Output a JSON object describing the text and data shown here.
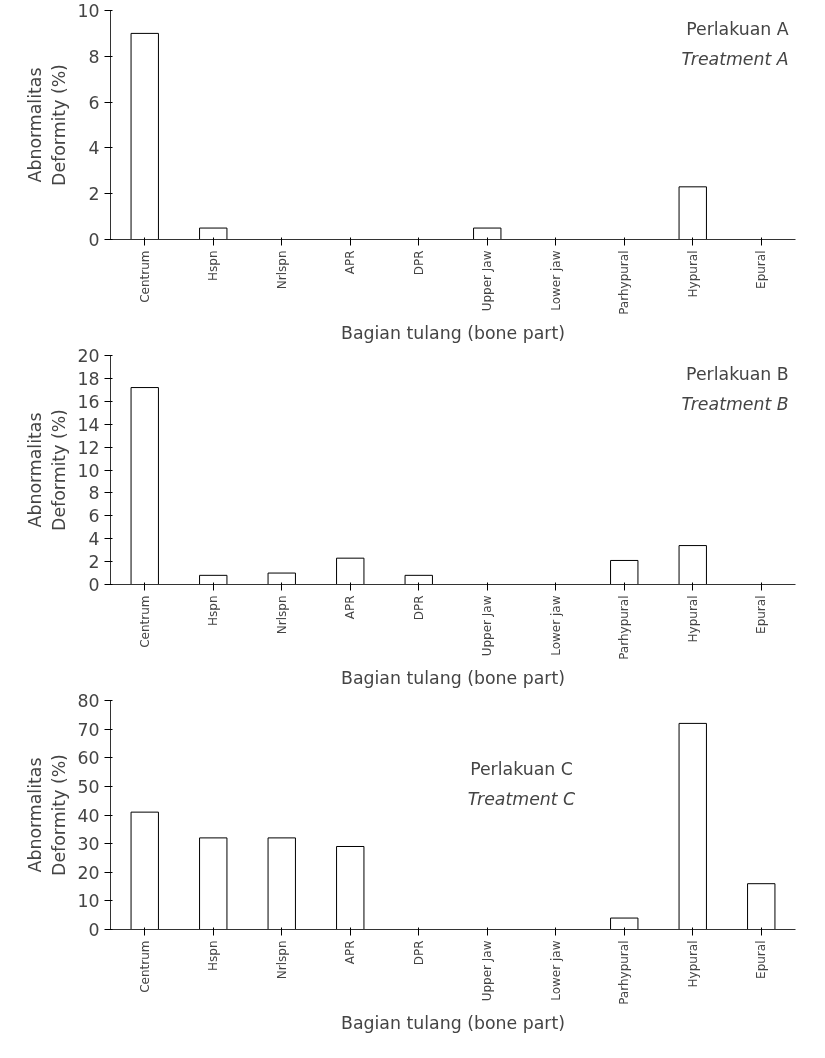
{
  "chart_data": [
    {
      "type": "bar",
      "title": "Perlakuan A",
      "subtitle": "Treatment A",
      "xlabel": "Bagian tulang (bone part)",
      "ylabel": "Abnormalitas\nDeformity (%)",
      "categories": [
        "Centrum",
        "Hspn",
        "Nrlspn",
        "APR",
        "DPR",
        "Upper Jaw",
        "Lower jaw",
        "Parhypural",
        "Hypural",
        "Epural"
      ],
      "values": [
        9,
        0.5,
        0,
        0,
        0,
        0.5,
        0,
        0,
        2.3,
        0
      ],
      "color": "#000000",
      "ylim": [
        0,
        10
      ],
      "yticks": [
        0,
        2,
        4,
        6,
        8,
        10
      ]
    },
    {
      "type": "bar",
      "title": "Perlakuan B",
      "subtitle": "Treatment B",
      "xlabel": "Bagian tulang (bone part)",
      "ylabel": "Abnormalitas\nDeformity (%)",
      "categories": [
        "Centrum",
        "Hspn",
        "Nrlspn",
        "APR",
        "DPR",
        "Upper Jaw",
        "Lower jaw",
        "Parhypural",
        "Hypural",
        "Epural"
      ],
      "values": [
        17.2,
        0.8,
        1.0,
        2.3,
        0.8,
        0,
        0,
        2.1,
        3.4,
        0
      ],
      "color": "#000000",
      "ylim": [
        0,
        20
      ],
      "yticks": [
        0,
        2,
        4,
        6,
        8,
        10,
        12,
        14,
        16,
        18,
        20
      ]
    },
    {
      "type": "bar",
      "title": "Perlakuan C",
      "subtitle": "Treatment C",
      "xlabel": "Bagian tulang (bone part)",
      "ylabel": "Abnormalitas\nDeformity (%)",
      "categories": [
        "Centrum",
        "Hspn",
        "Nrlspn",
        "APR",
        "DPR",
        "Upper Jaw",
        "Lower jaw",
        "Parhypural",
        "Hypural",
        "Epural"
      ],
      "values": [
        41,
        32,
        32,
        29,
        0,
        0,
        0,
        4,
        72,
        16
      ],
      "color": "#000000",
      "ylim": [
        0,
        80
      ],
      "yticks": [
        0,
        10,
        20,
        30,
        40,
        50,
        60,
        70,
        80
      ]
    }
  ]
}
